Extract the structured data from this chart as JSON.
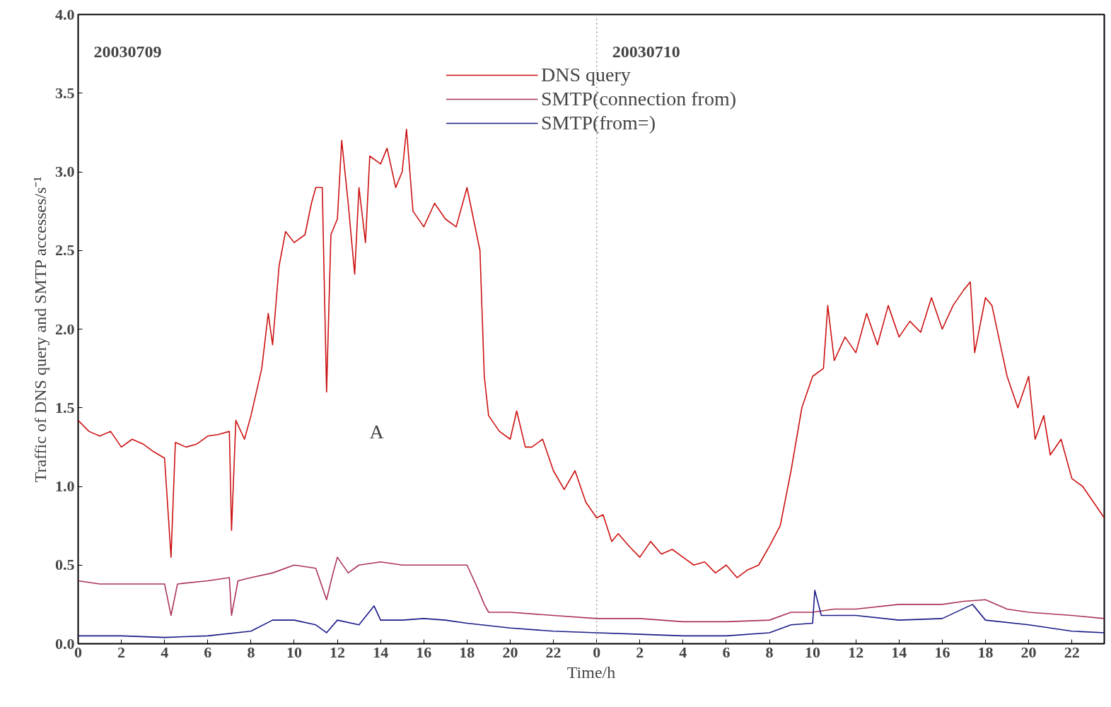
{
  "chart_data": {
    "type": "line",
    "xlabel": "Time/h",
    "ylabel": "Traffic of DNS query and SMTP accesses/s⁻¹",
    "xlim": [
      "2003-07-09T00:00",
      "2003-07-10T23:30"
    ],
    "ylim": [
      0,
      4.0
    ],
    "xticks": [
      {
        "value": "2003-07-09T00:00",
        "label": "0"
      },
      {
        "value": "2003-07-09T02:00",
        "label": "2"
      },
      {
        "value": "2003-07-09T04:00",
        "label": "4"
      },
      {
        "value": "2003-07-09T06:00",
        "label": "6"
      },
      {
        "value": "2003-07-09T08:00",
        "label": "8"
      },
      {
        "value": "2003-07-09T10:00",
        "label": "10"
      },
      {
        "value": "2003-07-09T12:00",
        "label": "12"
      },
      {
        "value": "2003-07-09T14:00",
        "label": "14"
      },
      {
        "value": "2003-07-09T16:00",
        "label": "16"
      },
      {
        "value": "2003-07-09T18:00",
        "label": "18"
      },
      {
        "value": "2003-07-09T20:00",
        "label": "20"
      },
      {
        "value": "2003-07-09T22:00",
        "label": "22"
      },
      {
        "value": "2003-07-10T00:00",
        "label": "0"
      },
      {
        "value": "2003-07-10T02:00",
        "label": "2"
      },
      {
        "value": "2003-07-10T04:00",
        "label": "4"
      },
      {
        "value": "2003-07-10T06:00",
        "label": "6"
      },
      {
        "value": "2003-07-10T08:00",
        "label": "8"
      },
      {
        "value": "2003-07-10T10:00",
        "label": "10"
      },
      {
        "value": "2003-07-10T12:00",
        "label": "12"
      },
      {
        "value": "2003-07-10T14:00",
        "label": "14"
      },
      {
        "value": "2003-07-10T16:00",
        "label": "16"
      },
      {
        "value": "2003-07-10T18:00",
        "label": "18"
      },
      {
        "value": "2003-07-10T20:00",
        "label": "20"
      },
      {
        "value": "2003-07-10T22:00",
        "label": "22"
      }
    ],
    "yticks": [
      {
        "value": 0,
        "label": "0.0"
      },
      0.5,
      {
        "value": 1,
        "label": "1.0"
      },
      1.5,
      {
        "value": 2,
        "label": "2.0"
      },
      2.5,
      {
        "value": 3,
        "label": "3.0"
      },
      3.5,
      {
        "value": 4,
        "label": "4.0"
      }
    ],
    "grid": false,
    "legend": "top",
    "marker": "none",
    "line_style": "solid",
    "ref_lines": [
      {
        "axis": "x",
        "value": "2003-07-10T00:00",
        "label": "20030710",
        "color": "#999999",
        "line_style": "dotted"
      }
    ],
    "annotations": [
      "20030709",
      "A"
    ],
    "series": [
      {
        "name": "DNS query",
        "color": "#cc1111",
        "x": [
          "2003-07-09T00:00",
          "2003-07-09T00:30",
          "2003-07-09T01:00",
          "2003-07-09T01:30",
          "2003-07-09T02:00",
          "2003-07-09T02:30",
          "2003-07-09T03:00",
          "2003-07-09T03:30",
          "2003-07-09T04:00",
          "2003-07-09T04:18",
          "2003-07-09T04:30",
          "2003-07-09T05:00",
          "2003-07-09T05:30",
          "2003-07-09T06:00",
          "2003-07-09T06:30",
          "2003-07-09T07:00",
          "2003-07-09T07:06",
          "2003-07-09T07:18",
          "2003-07-09T07:42",
          "2003-07-09T08:00",
          "2003-07-09T08:30",
          "2003-07-09T08:48",
          "2003-07-09T09:00",
          "2003-07-09T09:18",
          "2003-07-09T09:36",
          "2003-07-09T10:00",
          "2003-07-09T10:30",
          "2003-07-09T10:48",
          "2003-07-09T11:00",
          "2003-07-09T11:18",
          "2003-07-09T11:30",
          "2003-07-09T11:42",
          "2003-07-09T12:00",
          "2003-07-09T12:12",
          "2003-07-09T12:30",
          "2003-07-09T12:48",
          "2003-07-09T13:00",
          "2003-07-09T13:18",
          "2003-07-09T13:30",
          "2003-07-09T14:00",
          "2003-07-09T14:18",
          "2003-07-09T14:42",
          "2003-07-09T15:00",
          "2003-07-09T15:12",
          "2003-07-09T15:30",
          "2003-07-09T16:00",
          "2003-07-09T16:30",
          "2003-07-09T17:00",
          "2003-07-09T17:30",
          "2003-07-09T18:00",
          "2003-07-09T18:18",
          "2003-07-09T18:36",
          "2003-07-09T18:48",
          "2003-07-09T19:00",
          "2003-07-09T19:30",
          "2003-07-09T20:00",
          "2003-07-09T20:18",
          "2003-07-09T20:42",
          "2003-07-09T21:00",
          "2003-07-09T21:30",
          "2003-07-09T22:00",
          "2003-07-09T22:30",
          "2003-07-09T23:00",
          "2003-07-09T23:30",
          "2003-07-10T00:00",
          "2003-07-10T00:18",
          "2003-07-10T00:42",
          "2003-07-10T01:00",
          "2003-07-10T01:30",
          "2003-07-10T02:00",
          "2003-07-10T02:30",
          "2003-07-10T03:00",
          "2003-07-10T03:30",
          "2003-07-10T04:00",
          "2003-07-10T04:30",
          "2003-07-10T05:00",
          "2003-07-10T05:30",
          "2003-07-10T06:00",
          "2003-07-10T06:30",
          "2003-07-10T07:00",
          "2003-07-10T07:30",
          "2003-07-10T08:00",
          "2003-07-10T08:30",
          "2003-07-10T09:00",
          "2003-07-10T09:30",
          "2003-07-10T10:00",
          "2003-07-10T10:30",
          "2003-07-10T10:42",
          "2003-07-10T11:00",
          "2003-07-10T11:30",
          "2003-07-10T12:00",
          "2003-07-10T12:30",
          "2003-07-10T13:00",
          "2003-07-10T13:30",
          "2003-07-10T14:00",
          "2003-07-10T14:30",
          "2003-07-10T15:00",
          "2003-07-10T15:30",
          "2003-07-10T16:00",
          "2003-07-10T16:30",
          "2003-07-10T17:00",
          "2003-07-10T17:18",
          "2003-07-10T17:30",
          "2003-07-10T18:00",
          "2003-07-10T18:18",
          "2003-07-10T19:00",
          "2003-07-10T19:30",
          "2003-07-10T20:00",
          "2003-07-10T20:18",
          "2003-07-10T20:42",
          "2003-07-10T21:00",
          "2003-07-10T21:30",
          "2003-07-10T22:00",
          "2003-07-10T22:30",
          "2003-07-10T23:00",
          "2003-07-10T23:30"
        ],
        "values": [
          1.42,
          1.35,
          1.32,
          1.35,
          1.25,
          1.3,
          1.27,
          1.22,
          1.18,
          0.55,
          1.28,
          1.25,
          1.27,
          1.32,
          1.33,
          1.35,
          0.72,
          1.42,
          1.3,
          1.45,
          1.75,
          2.1,
          1.9,
          2.4,
          2.62,
          2.55,
          2.6,
          2.8,
          2.9,
          2.9,
          1.6,
          2.6,
          2.7,
          3.2,
          2.8,
          2.35,
          2.9,
          2.55,
          3.1,
          3.05,
          3.15,
          2.9,
          3.0,
          3.27,
          2.75,
          2.65,
          2.8,
          2.7,
          2.65,
          2.9,
          2.7,
          2.5,
          1.7,
          1.45,
          1.35,
          1.3,
          1.48,
          1.25,
          1.25,
          1.3,
          1.1,
          0.98,
          1.1,
          0.9,
          0.8,
          0.82,
          0.65,
          0.7,
          0.62,
          0.55,
          0.65,
          0.57,
          0.6,
          0.55,
          0.5,
          0.52,
          0.45,
          0.5,
          0.42,
          0.47,
          0.5,
          0.62,
          0.75,
          1.1,
          1.5,
          1.7,
          1.75,
          2.15,
          1.8,
          1.95,
          1.85,
          2.1,
          1.9,
          2.15,
          1.95,
          2.05,
          1.98,
          2.2,
          2.0,
          2.15,
          2.25,
          2.3,
          1.85,
          2.2,
          2.15,
          1.7,
          1.5,
          1.7,
          1.3,
          1.45,
          1.2,
          1.3,
          1.05,
          1.0,
          0.9,
          0.8
        ]
      },
      {
        "name": "SMTP(connection from)",
        "color": "#aa3355",
        "x": [
          "2003-07-09T00:00",
          "2003-07-09T01:00",
          "2003-07-09T02:00",
          "2003-07-09T03:00",
          "2003-07-09T04:00",
          "2003-07-09T04:18",
          "2003-07-09T04:36",
          "2003-07-09T06:00",
          "2003-07-09T07:00",
          "2003-07-09T07:06",
          "2003-07-09T07:24",
          "2003-07-09T08:00",
          "2003-07-09T09:00",
          "2003-07-09T10:00",
          "2003-07-09T11:00",
          "2003-07-09T11:30",
          "2003-07-09T11:48",
          "2003-07-09T12:00",
          "2003-07-09T12:30",
          "2003-07-09T13:00",
          "2003-07-09T14:00",
          "2003-07-09T15:00",
          "2003-07-09T16:00",
          "2003-07-09T17:00",
          "2003-07-09T18:00",
          "2003-07-09T18:30",
          "2003-07-09T18:48",
          "2003-07-09T19:00",
          "2003-07-09T20:00",
          "2003-07-09T22:00",
          "2003-07-10T00:00",
          "2003-07-10T02:00",
          "2003-07-10T04:00",
          "2003-07-10T06:00",
          "2003-07-10T08:00",
          "2003-07-10T09:00",
          "2003-07-10T10:00",
          "2003-07-10T11:00",
          "2003-07-10T12:00",
          "2003-07-10T14:00",
          "2003-07-10T16:00",
          "2003-07-10T17:00",
          "2003-07-10T18:00",
          "2003-07-10T19:00",
          "2003-07-10T20:00",
          "2003-07-10T22:00",
          "2003-07-10T23:30"
        ],
        "values": [
          0.4,
          0.38,
          0.38,
          0.38,
          0.38,
          0.18,
          0.38,
          0.4,
          0.42,
          0.18,
          0.4,
          0.42,
          0.45,
          0.5,
          0.48,
          0.28,
          0.45,
          0.55,
          0.45,
          0.5,
          0.52,
          0.5,
          0.5,
          0.5,
          0.5,
          0.35,
          0.25,
          0.2,
          0.2,
          0.18,
          0.16,
          0.16,
          0.14,
          0.14,
          0.15,
          0.2,
          0.2,
          0.22,
          0.22,
          0.25,
          0.25,
          0.27,
          0.28,
          0.22,
          0.2,
          0.18,
          0.16
        ]
      },
      {
        "name": "SMTP(from=)",
        "color": "#1a1a88",
        "x": [
          "2003-07-09T00:00",
          "2003-07-09T02:00",
          "2003-07-09T04:00",
          "2003-07-09T06:00",
          "2003-07-09T08:00",
          "2003-07-09T09:00",
          "2003-07-09T10:00",
          "2003-07-09T11:00",
          "2003-07-09T11:30",
          "2003-07-09T12:00",
          "2003-07-09T13:00",
          "2003-07-09T13:42",
          "2003-07-09T14:00",
          "2003-07-09T15:00",
          "2003-07-09T16:00",
          "2003-07-09T17:00",
          "2003-07-09T18:00",
          "2003-07-09T20:00",
          "2003-07-09T22:00",
          "2003-07-10T00:00",
          "2003-07-10T02:00",
          "2003-07-10T04:00",
          "2003-07-10T06:00",
          "2003-07-10T08:00",
          "2003-07-10T09:00",
          "2003-07-10T10:00",
          "2003-07-10T10:06",
          "2003-07-10T10:24",
          "2003-07-10T12:00",
          "2003-07-10T14:00",
          "2003-07-10T16:00",
          "2003-07-10T17:24",
          "2003-07-10T18:00",
          "2003-07-10T20:00",
          "2003-07-10T22:00",
          "2003-07-10T23:30"
        ],
        "values": [
          0.05,
          0.05,
          0.04,
          0.05,
          0.08,
          0.15,
          0.15,
          0.12,
          0.07,
          0.15,
          0.12,
          0.24,
          0.15,
          0.15,
          0.16,
          0.15,
          0.13,
          0.1,
          0.08,
          0.07,
          0.06,
          0.05,
          0.05,
          0.07,
          0.12,
          0.13,
          0.34,
          0.18,
          0.18,
          0.15,
          0.16,
          0.25,
          0.15,
          0.12,
          0.08,
          0.07
        ]
      }
    ]
  }
}
